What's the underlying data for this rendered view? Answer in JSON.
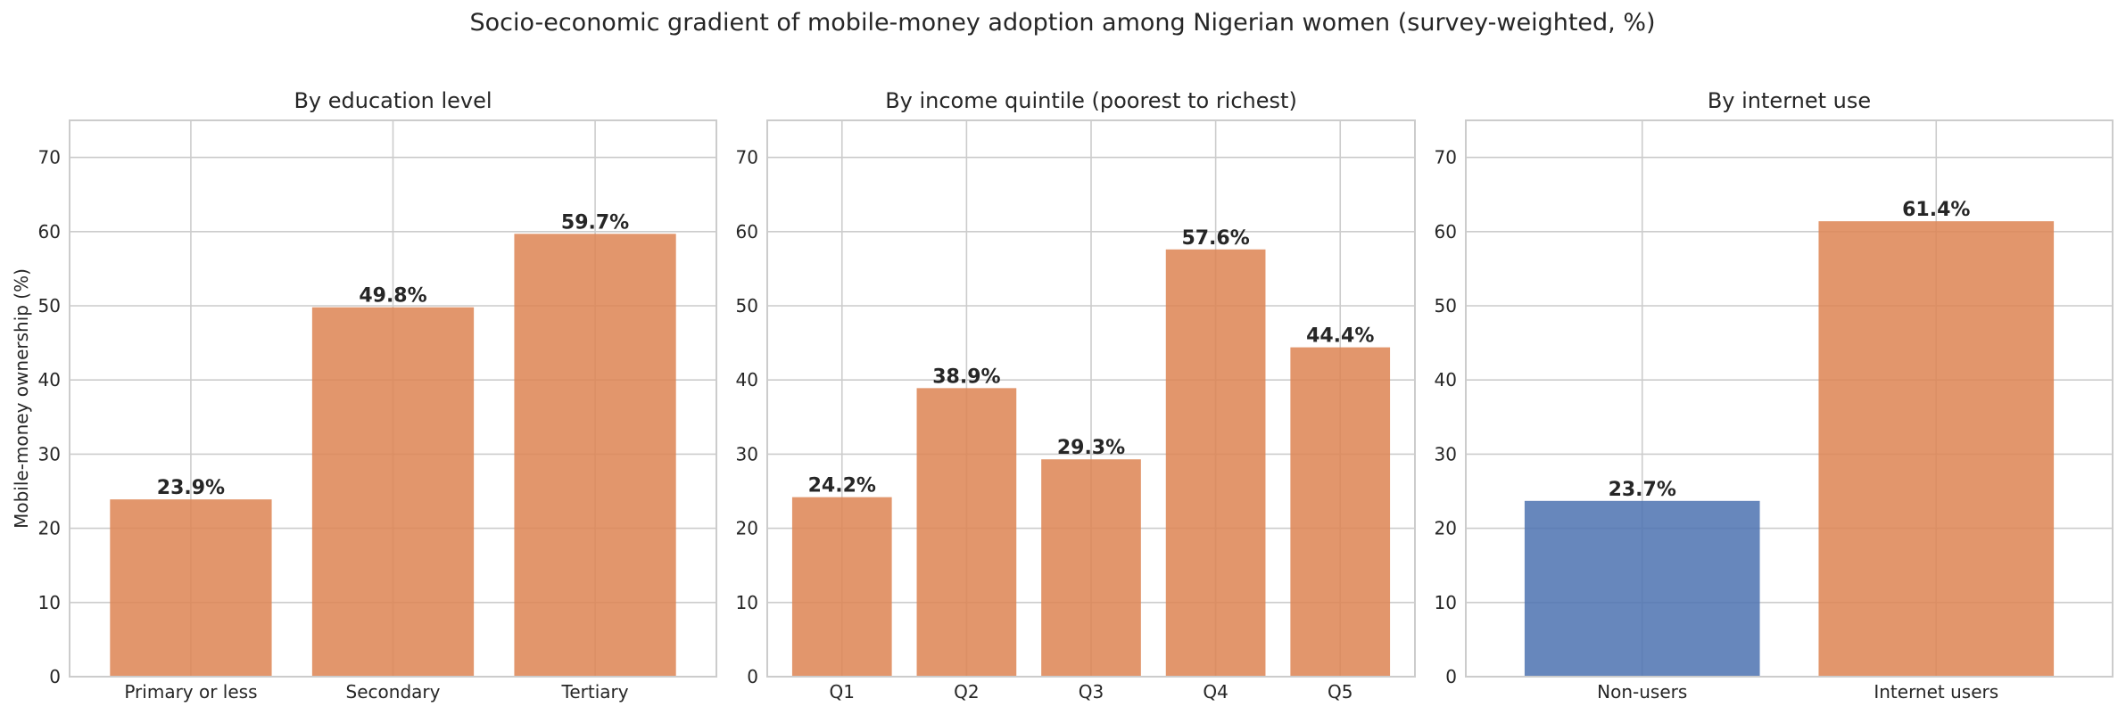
{
  "figure_title": "Socio-economic gradient of mobile-money adoption among Nigerian women (survey-weighted, %)",
  "chart_data": [
    {
      "type": "bar",
      "title": "By education level",
      "xlabel": "",
      "ylabel": "Mobile-money ownership (%)",
      "ylim": [
        0,
        75
      ],
      "yticks": [
        0,
        10,
        20,
        30,
        40,
        50,
        60,
        70
      ],
      "grid": true,
      "categories": [
        "Primary or less",
        "Secondary",
        "Tertiary"
      ],
      "values": [
        23.9,
        49.8,
        59.7
      ],
      "value_labels": [
        "23.9%",
        "49.8%",
        "59.7%"
      ],
      "colors": [
        "#dd8452",
        "#dd8452",
        "#dd8452"
      ]
    },
    {
      "type": "bar",
      "title": "By income quintile (poorest to richest)",
      "xlabel": "",
      "ylabel": "",
      "ylim": [
        0,
        75
      ],
      "yticks": [
        0,
        10,
        20,
        30,
        40,
        50,
        60,
        70
      ],
      "grid": true,
      "categories": [
        "Q1",
        "Q2",
        "Q3",
        "Q4",
        "Q5"
      ],
      "values": [
        24.2,
        38.9,
        29.3,
        57.6,
        44.4
      ],
      "value_labels": [
        "24.2%",
        "38.9%",
        "29.3%",
        "57.6%",
        "44.4%"
      ],
      "colors": [
        "#dd8452",
        "#dd8452",
        "#dd8452",
        "#dd8452",
        "#dd8452"
      ]
    },
    {
      "type": "bar",
      "title": "By internet use",
      "xlabel": "",
      "ylabel": "",
      "ylim": [
        0,
        75
      ],
      "yticks": [
        0,
        10,
        20,
        30,
        40,
        50,
        60,
        70
      ],
      "grid": true,
      "categories": [
        "Non-users",
        "Internet users"
      ],
      "values": [
        23.7,
        61.4
      ],
      "value_labels": [
        "23.7%",
        "61.4%"
      ],
      "colors": [
        "#4c72b0",
        "#dd8452"
      ]
    }
  ]
}
